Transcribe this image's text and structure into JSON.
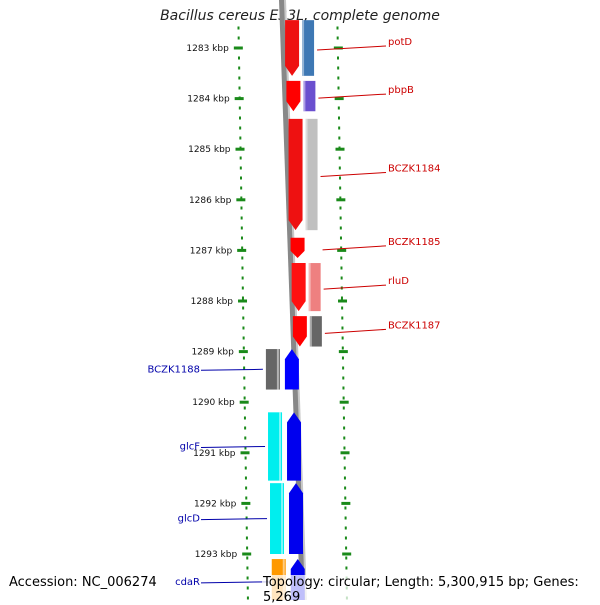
{
  "map": {
    "title": "Bacillus cereus E33L, complete genome",
    "footer": {
      "accession": "Accession: NC_006274",
      "stats": "Topology: circular; Length: 5,300,915 bp; Genes: 5,269"
    },
    "colors": {
      "ruler": "#1a8a1a",
      "backbone": "#888888",
      "label_red": "#cc0000",
      "label_blue": "#0000aa"
    },
    "ticks": [
      {
        "kbp": 1283,
        "label": "1283 kbp"
      },
      {
        "kbp": 1284,
        "label": "1284 kbp"
      },
      {
        "kbp": 1285,
        "label": "1285 kbp"
      },
      {
        "kbp": 1286,
        "label": "1286 kbp"
      },
      {
        "kbp": 1287,
        "label": "1287 kbp"
      },
      {
        "kbp": 1288,
        "label": "1288 kbp"
      },
      {
        "kbp": 1289,
        "label": "1289 kbp"
      },
      {
        "kbp": 1290,
        "label": "1290 kbp"
      },
      {
        "kbp": 1291,
        "label": "1291 kbp"
      },
      {
        "kbp": 1292,
        "label": "1292 kbp"
      },
      {
        "kbp": 1293,
        "label": "1293 kbp"
      }
    ],
    "genes": [
      {
        "name": "potD",
        "label": "potD",
        "strand": "right",
        "start_kbp": 1282.45,
        "end_kbp": 1283.55,
        "color": "#ee1111",
        "cog_color": "#3e78b4"
      },
      {
        "name": "pbpB",
        "label": "pbpB",
        "strand": "right",
        "start_kbp": 1283.65,
        "end_kbp": 1284.25,
        "color": "#ff0000",
        "cog_color": "#6a4fcf"
      },
      {
        "name": "BCZK1184",
        "label": "BCZK1184",
        "strand": "right",
        "start_kbp": 1284.4,
        "end_kbp": 1286.6,
        "color": "#ee1111",
        "cog_color": "#c0c0c0"
      },
      {
        "name": "BCZK1185",
        "label": "BCZK1185",
        "strand": "right",
        "start_kbp": 1286.75,
        "end_kbp": 1287.15,
        "color": "#ff0000",
        "cog_color": ""
      },
      {
        "name": "rluD",
        "label": "rluD",
        "strand": "right",
        "start_kbp": 1287.25,
        "end_kbp": 1288.2,
        "color": "#ff1111",
        "cog_color": "#ee8080"
      },
      {
        "name": "BCZK1187",
        "label": "BCZK1187",
        "strand": "right",
        "start_kbp": 1288.3,
        "end_kbp": 1288.9,
        "color": "#ff0000",
        "cog_color": "#666666"
      },
      {
        "name": "BCZK1188",
        "label": "BCZK1188",
        "strand": "left",
        "start_kbp": 1288.95,
        "end_kbp": 1289.75,
        "color": "#0000ff",
        "cog_color": "#666666"
      },
      {
        "name": "glcF",
        "label": "glcF",
        "strand": "left",
        "start_kbp": 1290.2,
        "end_kbp": 1291.55,
        "color": "#0000ee",
        "cog_color": "#00eeee"
      },
      {
        "name": "glcD",
        "label": "glcD",
        "strand": "left",
        "start_kbp": 1291.6,
        "end_kbp": 1293.0,
        "color": "#0000ee",
        "cog_color": "#00eeee"
      },
      {
        "name": "cdaR",
        "label": "cdaR",
        "strand": "left",
        "start_kbp": 1293.1,
        "end_kbp": 1294.0,
        "color": "#0000ee",
        "cog_color": "#ff9900"
      }
    ]
  }
}
